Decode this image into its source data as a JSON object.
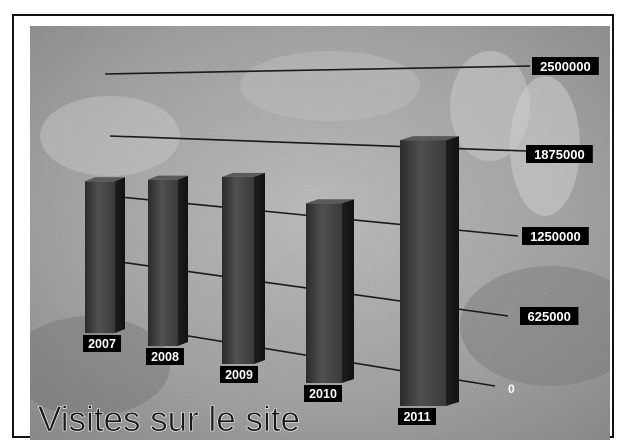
{
  "chart_data": {
    "type": "bar",
    "title": "Visites sur le site",
    "categories": [
      "2007",
      "2008",
      "2009",
      "2010",
      "2011"
    ],
    "values": [
      1480000,
      1680000,
      1910000,
      2020000,
      2520000
    ],
    "ylim": [
      0,
      2500000
    ],
    "yticks": [
      "0",
      "625000",
      "1250000",
      "1875000",
      "2500000"
    ],
    "grid": true,
    "style": "3d-perspective",
    "colors": {
      "bar": "#3a3a3a",
      "label_bg": "#000000",
      "label_text": "#ffffff",
      "title": "#1a1a1a"
    }
  }
}
